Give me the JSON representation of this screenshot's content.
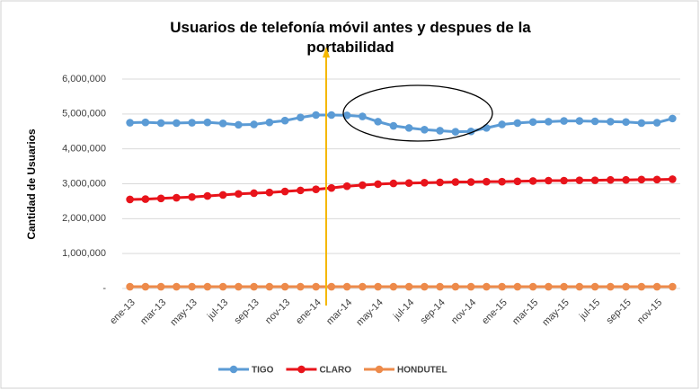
{
  "chart_data": {
    "type": "line",
    "title": "Usuarios de telefonía móvil antes y despues de la portabilidad",
    "y_label": "Cantidad de Usuarios",
    "categories": [
      "ene-13",
      null,
      "mar-13",
      null,
      "may-13",
      null,
      "jul-13",
      null,
      "sep-13",
      null,
      "nov-13",
      null,
      "ene-14",
      null,
      "mar-14",
      null,
      "may-14",
      null,
      "jul-14",
      null,
      "sep-14",
      null,
      "nov-14",
      null,
      "ene-15",
      null,
      "mar-15",
      null,
      "may-15",
      null,
      "jul-15",
      null,
      "sep-15",
      null,
      "nov-15",
      null
    ],
    "series": [
      {
        "name": "TIGO",
        "color": "#5b9bd5",
        "values": [
          4750000,
          4760000,
          4740000,
          4740000,
          4750000,
          4760000,
          4730000,
          4690000,
          4700000,
          4760000,
          4810000,
          4900000,
          4970000,
          4970000,
          4960000,
          4930000,
          4780000,
          4660000,
          4600000,
          4550000,
          4520000,
          4490000,
          4500000,
          4600000,
          4700000,
          4740000,
          4770000,
          4780000,
          4800000,
          4800000,
          4790000,
          4780000,
          4770000,
          4740000,
          4750000,
          4870000
        ]
      },
      {
        "name": "CLARO",
        "color": "#e8141b",
        "values": [
          2550000,
          2560000,
          2580000,
          2600000,
          2620000,
          2650000,
          2680000,
          2710000,
          2730000,
          2750000,
          2780000,
          2810000,
          2840000,
          2880000,
          2930000,
          2960000,
          2990000,
          3010000,
          3020000,
          3030000,
          3040000,
          3050000,
          3050000,
          3060000,
          3060000,
          3070000,
          3080000,
          3090000,
          3090000,
          3100000,
          3100000,
          3110000,
          3110000,
          3120000,
          3120000,
          3130000
        ]
      },
      {
        "name": "HONDUTEL",
        "color": "#ed8a4a",
        "values": [
          50000,
          50000,
          50000,
          50000,
          50000,
          50000,
          50000,
          50000,
          50000,
          50000,
          50000,
          50000,
          50000,
          50000,
          50000,
          50000,
          50000,
          50000,
          50000,
          50000,
          50000,
          50000,
          50000,
          50000,
          50000,
          50000,
          50000,
          50000,
          50000,
          50000,
          50000,
          50000,
          50000,
          50000,
          50000,
          50000
        ]
      }
    ],
    "ylim": [
      0,
      6000000
    ],
    "yticks": [
      {
        "value": 0,
        "label": "-"
      },
      {
        "value": 1000000,
        "label": "1,000,000"
      },
      {
        "value": 2000000,
        "label": "2,000,000"
      },
      {
        "value": 3000000,
        "label": "3,000,000"
      },
      {
        "value": 4000000,
        "label": "4,000,000"
      },
      {
        "value": 5000000,
        "label": "5,000,000"
      },
      {
        "value": 6000000,
        "label": "6,000,000"
      }
    ],
    "grid": true,
    "legend": "bottom"
  }
}
